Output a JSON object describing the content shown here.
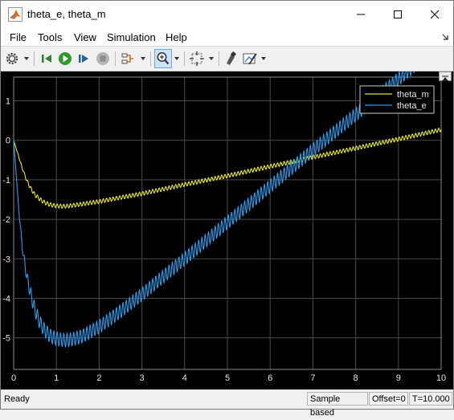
{
  "window": {
    "title": "theta_e, theta_m"
  },
  "menu": [
    "File",
    "Tools",
    "View",
    "Simulation",
    "Help"
  ],
  "toolbar": {
    "icons": [
      "gear-icon",
      "step-back-icon",
      "run-icon",
      "step-forward-icon",
      "stop-icon",
      "signal-select-icon",
      "zoom-icon",
      "fit-to-view-icon",
      "highlight-icon",
      "style-icon"
    ]
  },
  "status": {
    "ready": "Ready",
    "mode": "Sample based",
    "offset": "Offset=0",
    "time": "T=10.000"
  },
  "colors": {
    "theta_m": "#e6e632",
    "theta_e": "#2f9be8",
    "background": "#000000",
    "grid": "#4a4a4a"
  },
  "chart_data": {
    "type": "line",
    "xlim": [
      0,
      10
    ],
    "ylim": [
      -5.8,
      1.6
    ],
    "xticks": [
      0,
      1,
      2,
      3,
      4,
      5,
      6,
      7,
      8,
      9,
      10
    ],
    "yticks": [
      1,
      0,
      -1,
      -2,
      -3,
      -4,
      -5
    ],
    "grid": true,
    "legend_position": "top-right",
    "series": [
      {
        "name": "theta_m",
        "color": "#e6e632",
        "x": [
          0,
          0.1,
          0.2,
          0.3,
          0.4,
          0.5,
          0.6,
          0.7,
          0.8,
          0.9,
          1.0,
          1.1,
          1.2,
          1.3,
          1.5,
          2,
          2.5,
          3,
          4,
          5,
          6,
          7,
          8,
          9,
          10
        ],
        "y": [
          0,
          -0.35,
          -0.7,
          -1.0,
          -1.22,
          -1.38,
          -1.48,
          -1.56,
          -1.61,
          -1.64,
          -1.66,
          -1.67,
          -1.67,
          -1.66,
          -1.63,
          -1.55,
          -1.45,
          -1.35,
          -1.12,
          -0.9,
          -0.66,
          -0.43,
          -0.2,
          0.03,
          0.27
        ],
        "ripple": 0.05
      },
      {
        "name": "theta_e",
        "color": "#2f9be8",
        "x": [
          0,
          0.05,
          0.1,
          0.2,
          0.3,
          0.4,
          0.5,
          0.6,
          0.7,
          0.8,
          0.9,
          1.0,
          1.1,
          1.2,
          1.3,
          1.4,
          1.6,
          2,
          2.5,
          3,
          4,
          5,
          6,
          7,
          8,
          9,
          10
        ],
        "y": [
          0,
          -0.7,
          -1.5,
          -2.7,
          -3.4,
          -3.9,
          -4.3,
          -4.58,
          -4.77,
          -4.9,
          -4.98,
          -5.02,
          -5.05,
          -5.06,
          -5.05,
          -5.03,
          -4.96,
          -4.72,
          -4.33,
          -3.9,
          -3.0,
          -2.08,
          -1.16,
          -0.25,
          0.65,
          1.55,
          2.45
        ],
        "ripple": 0.17
      }
    ]
  }
}
